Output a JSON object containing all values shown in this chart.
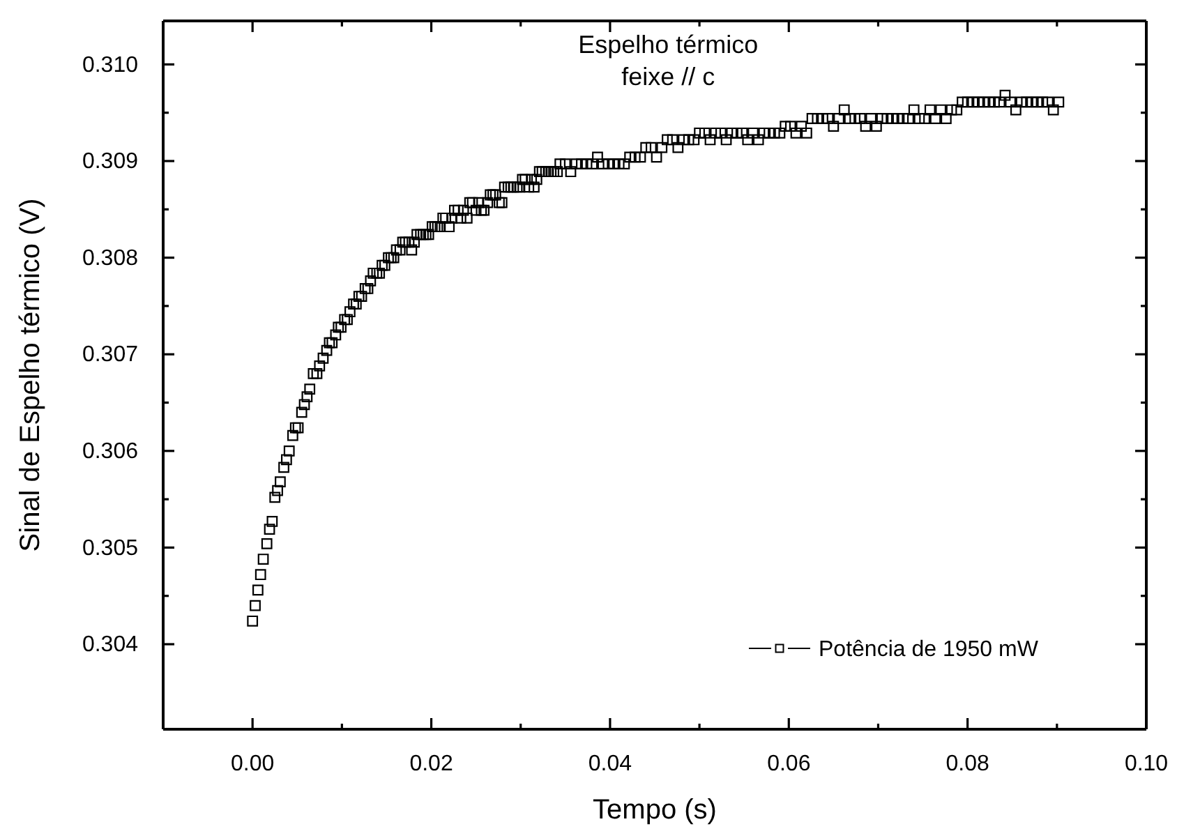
{
  "chart_data": {
    "type": "scatter",
    "title": "Espelho térmico",
    "subtitle": "feixe // c",
    "xlabel": "Tempo (s)",
    "ylabel": "Sinal de Espelho térmico (V)",
    "xlim": [
      -0.01,
      0.1
    ],
    "ylim": [
      0.30312,
      0.31045
    ],
    "xticks": [
      {
        "value": 0,
        "label": "0.00"
      },
      {
        "value": 0.01,
        "label": null
      },
      0.02,
      {
        "value": 0.03,
        "label": null
      },
      0.04,
      {
        "value": 0.05,
        "label": null
      },
      0.06,
      {
        "value": 0.07,
        "label": null
      },
      0.08,
      {
        "value": 0.09,
        "label": null
      },
      {
        "value": 0.1,
        "label": "0.10"
      }
    ],
    "yticks": [
      0.304,
      {
        "value": 0.3045,
        "label": null
      },
      0.305,
      {
        "value": 0.3055,
        "label": null
      },
      0.306,
      {
        "value": 0.3065,
        "label": null
      },
      0.307,
      {
        "value": 0.3075,
        "label": null
      },
      0.308,
      {
        "value": 0.3085,
        "label": null
      },
      0.309,
      {
        "value": 0.3095,
        "label": null
      },
      {
        "value": 0.31,
        "label": "0.310"
      }
    ],
    "marker": "square",
    "legend": "bottom right",
    "grid": false,
    "series": [
      {
        "name": "Potência de 1950 mW",
        "color": "#000000",
        "x": [
          0,
          0.0003,
          0.0006,
          0.0009,
          0.0012,
          0.0016,
          0.0019,
          0.0022,
          0.0025,
          0.0028,
          0.0031,
          0.0035,
          0.0038,
          0.0041,
          0.0045,
          0.0048,
          0.0051,
          0.0055,
          0.0058,
          0.0061,
          0.0064,
          0.0068,
          0.0072,
          0.0075,
          0.0079,
          0.0083,
          0.0086,
          0.0089,
          0.0093,
          0.0096,
          0.0099,
          0.0103,
          0.0106,
          0.0109,
          0.0113,
          0.0116,
          0.0119,
          0.0122,
          0.0126,
          0.0129,
          0.0132,
          0.0135,
          0.0139,
          0.0142,
          0.0145,
          0.0148,
          0.0152,
          0.0155,
          0.0158,
          0.0161,
          0.0165,
          0.0168,
          0.0171,
          0.0175,
          0.0178,
          0.0181,
          0.0184,
          0.0188,
          0.0191,
          0.0194,
          0.0197,
          0.0201,
          0.0204,
          0.0207,
          0.021,
          0.0213,
          0.0216,
          0.022,
          0.0223,
          0.0226,
          0.023,
          0.0233,
          0.0236,
          0.024,
          0.0243,
          0.0246,
          0.025,
          0.0253,
          0.0256,
          0.0259,
          0.0263,
          0.0266,
          0.0269,
          0.0272,
          0.0276,
          0.0279,
          0.0282,
          0.0286,
          0.0289,
          0.0292,
          0.0296,
          0.0299,
          0.0302,
          0.0305,
          0.0309,
          0.0312,
          0.0315,
          0.0318,
          0.0321,
          0.0324,
          0.0328,
          0.0331,
          0.0334,
          0.0337,
          0.0341,
          0.0344,
          0.035,
          0.0356,
          0.0362,
          0.0368,
          0.0374,
          0.038,
          0.0386,
          0.0392,
          0.0398,
          0.0404,
          0.041,
          0.0416,
          0.0422,
          0.0428,
          0.0434,
          0.044,
          0.0446,
          0.0452,
          0.0458,
          0.0464,
          0.047,
          0.0476,
          0.0482,
          0.0488,
          0.0494,
          0.05,
          0.0506,
          0.0512,
          0.0518,
          0.0524,
          0.053,
          0.0536,
          0.0542,
          0.0548,
          0.0554,
          0.056,
          0.0566,
          0.0572,
          0.0578,
          0.0584,
          0.059,
          0.0596,
          0.0602,
          0.0608,
          0.0614,
          0.062,
          0.0626,
          0.0632,
          0.0638,
          0.0644,
          0.065,
          0.0656,
          0.0662,
          0.0668,
          0.0674,
          0.068,
          0.0686,
          0.0692,
          0.0698,
          0.0704,
          0.071,
          0.0716,
          0.0722,
          0.0728,
          0.0734,
          0.074,
          0.0746,
          0.0752,
          0.0758,
          0.0764,
          0.077,
          0.0776,
          0.0782,
          0.0788,
          0.0794,
          0.08,
          0.0806,
          0.0812,
          0.0818,
          0.0824,
          0.083,
          0.0836,
          0.0842,
          0.0848,
          0.0854,
          0.086,
          0.0866,
          0.0872,
          0.0878,
          0.0884,
          0.089,
          0.0896,
          0.0902
        ],
        "values": [
          0.30424,
          0.3044,
          0.30456,
          0.30472,
          0.30488,
          0.30504,
          0.30519,
          0.30527,
          0.30552,
          0.30559,
          0.30568,
          0.30583,
          0.30591,
          0.306,
          0.30616,
          0.30624,
          0.30624,
          0.3064,
          0.30648,
          0.30656,
          0.30664,
          0.3068,
          0.3068,
          0.30688,
          0.30696,
          0.30704,
          0.30712,
          0.30712,
          0.3072,
          0.30728,
          0.30728,
          0.30736,
          0.30736,
          0.30744,
          0.30752,
          0.30752,
          0.3076,
          0.3076,
          0.30768,
          0.30768,
          0.30776,
          0.30784,
          0.30784,
          0.30784,
          0.30792,
          0.30792,
          0.308,
          0.308,
          0.308,
          0.30808,
          0.30808,
          0.30816,
          0.30816,
          0.30816,
          0.30808,
          0.30816,
          0.30824,
          0.30824,
          0.30824,
          0.30824,
          0.30824,
          0.30832,
          0.30832,
          0.30832,
          0.30832,
          0.30841,
          0.30841,
          0.30832,
          0.30841,
          0.30849,
          0.30849,
          0.30841,
          0.30849,
          0.30841,
          0.30857,
          0.30857,
          0.30849,
          0.30857,
          0.30849,
          0.30849,
          0.30857,
          0.30865,
          0.30865,
          0.30865,
          0.30857,
          0.30857,
          0.30873,
          0.30873,
          0.30873,
          0.30873,
          0.30873,
          0.30873,
          0.30881,
          0.30881,
          0.30873,
          0.30881,
          0.30873,
          0.30881,
          0.30889,
          0.30889,
          0.30889,
          0.30889,
          0.30889,
          0.30889,
          0.30889,
          0.30897,
          0.30897,
          0.30889,
          0.30897,
          0.30897,
          0.30897,
          0.30897,
          0.30904,
          0.30897,
          0.30897,
          0.30897,
          0.30897,
          0.30897,
          0.30904,
          0.30904,
          0.30904,
          0.30914,
          0.30914,
          0.30904,
          0.30914,
          0.30922,
          0.30922,
          0.30914,
          0.30922,
          0.30922,
          0.30922,
          0.30929,
          0.30929,
          0.30922,
          0.30929,
          0.30929,
          0.30922,
          0.30929,
          0.30929,
          0.30929,
          0.30922,
          0.30929,
          0.30922,
          0.30929,
          0.30929,
          0.30929,
          0.30929,
          0.30936,
          0.30936,
          0.30929,
          0.30936,
          0.30929,
          0.30944,
          0.30944,
          0.30944,
          0.30944,
          0.30936,
          0.30944,
          0.30953,
          0.30944,
          0.30944,
          0.30944,
          0.30936,
          0.30944,
          0.30936,
          0.30944,
          0.30944,
          0.30944,
          0.30944,
          0.30944,
          0.30944,
          0.30953,
          0.30944,
          0.30944,
          0.30953,
          0.30944,
          0.30953,
          0.30944,
          0.30953,
          0.30953,
          0.30961,
          0.30961,
          0.30961,
          0.30961,
          0.30961,
          0.30961,
          0.30961,
          0.30961,
          0.30968,
          0.30961,
          0.30953,
          0.30961,
          0.30961,
          0.30961,
          0.30961,
          0.30961,
          0.30961,
          0.30953,
          0.30961
        ]
      }
    ]
  }
}
